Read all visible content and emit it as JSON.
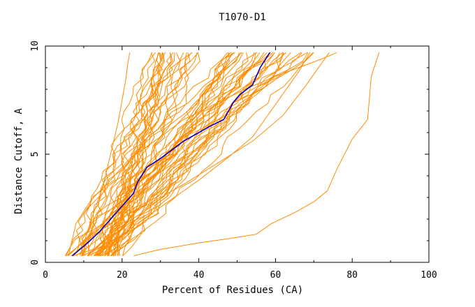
{
  "chart_data": {
    "type": "line",
    "title": "T1070-D1",
    "xlabel": "Percent of Residues (CA)",
    "ylabel": "Distance Cutoff, A",
    "xlim": [
      0,
      100
    ],
    "ylim": [
      0,
      10
    ],
    "xticks": [
      "0",
      "20",
      "40",
      "60",
      "80",
      "100"
    ],
    "yticks": [
      "0",
      "5",
      "10"
    ],
    "grid": false,
    "legend": "none",
    "colors": {
      "others": "#ff8c00",
      "highlight": "#0000cc"
    },
    "highlight": {
      "x": [
        7,
        11,
        14,
        17,
        20,
        23,
        24,
        26.5,
        30,
        33,
        36,
        40,
        43,
        46.5,
        49,
        51,
        54,
        56,
        58.5
      ],
      "y": [
        0.3,
        0.9,
        1.4,
        2.0,
        2.6,
        3.2,
        3.7,
        4.4,
        4.8,
        5.2,
        5.6,
        6.0,
        6.3,
        6.6,
        7.4,
        7.8,
        8.2,
        9.0,
        9.7
      ]
    },
    "outlier_series": [
      {
        "x": [
          23,
          30,
          40,
          48,
          55,
          59,
          65,
          70,
          73.5,
          76,
          80,
          84,
          84.5,
          85,
          87
        ],
        "y": [
          0.3,
          0.6,
          0.9,
          1.1,
          1.3,
          1.8,
          2.3,
          2.8,
          3.3,
          4.3,
          5.7,
          6.6,
          7.6,
          8.6,
          9.7
        ]
      },
      {
        "x": [
          6,
          8,
          12,
          17,
          22,
          30,
          36,
          44,
          52,
          60,
          66,
          72,
          76
        ],
        "y": [
          0.3,
          1.8,
          2.9,
          3.8,
          4.8,
          5.8,
          6.6,
          7.3,
          8.0,
          8.6,
          9.0,
          9.4,
          9.7
        ]
      },
      {
        "x": [
          9,
          12,
          15,
          17,
          19,
          20,
          21,
          21.5,
          22
        ],
        "y": [
          0.3,
          2.0,
          3.5,
          5.0,
          6.5,
          7.5,
          8.5,
          9.2,
          9.7
        ]
      },
      {
        "x": [
          5.5,
          9,
          13,
          18,
          27,
          36,
          45,
          54,
          62,
          68,
          74
        ],
        "y": [
          0.3,
          0.8,
          1.3,
          1.9,
          2.7,
          3.6,
          4.6,
          5.6,
          6.8,
          8.2,
          9.7
        ]
      },
      {
        "x": [
          13,
          18,
          24,
          32,
          40,
          48,
          54,
          58,
          62,
          66,
          69
        ],
        "y": [
          0.3,
          1.0,
          1.8,
          2.8,
          3.8,
          4.9,
          5.8,
          6.8,
          7.8,
          8.8,
          9.7
        ]
      }
    ],
    "series_bundle": {
      "count": 60,
      "seed": 1070,
      "x_start_range": [
        6,
        20
      ],
      "x_end_range": [
        22,
        70
      ],
      "y_start": 0.3,
      "y_end": 9.7
    }
  }
}
